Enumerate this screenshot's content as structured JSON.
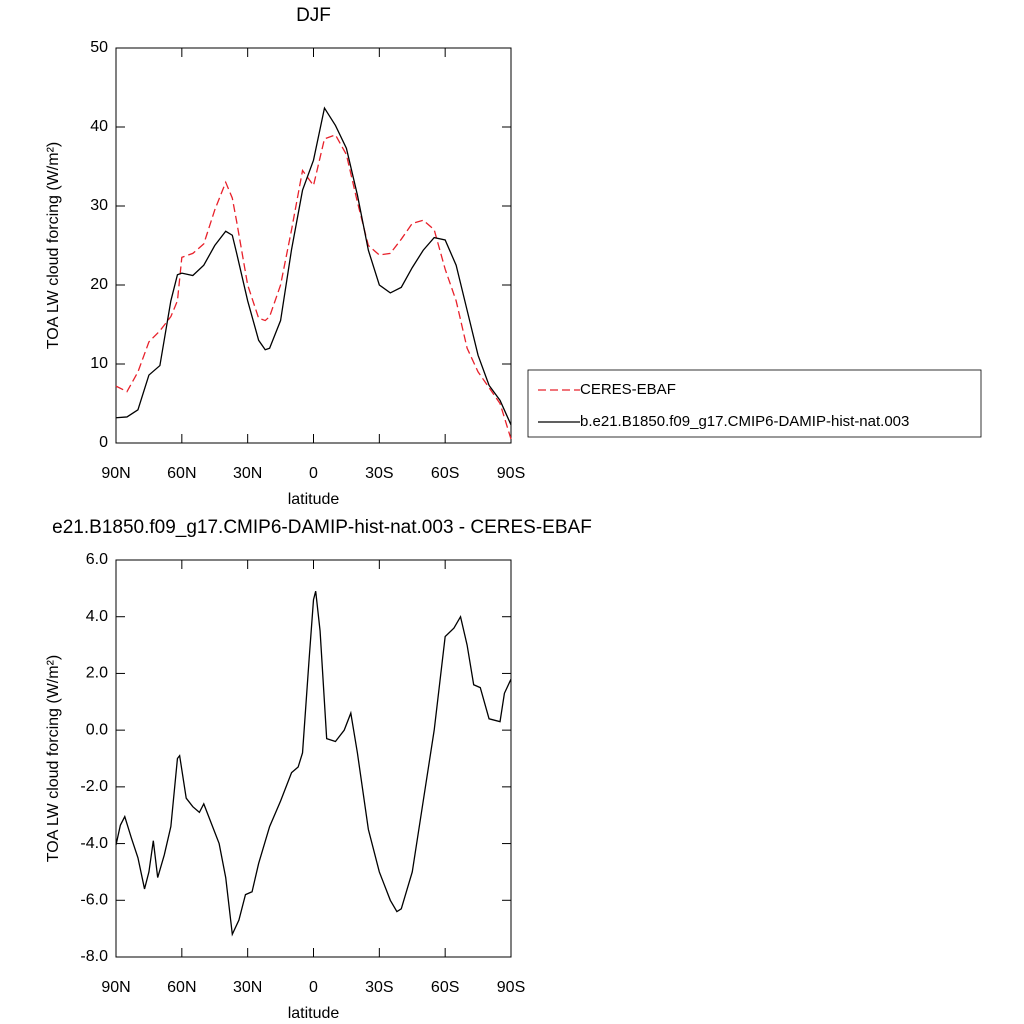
{
  "chart_data": [
    {
      "type": "line",
      "title": "DJF",
      "xlabel": "latitude",
      "ylabel": "TOA LW cloud forcing (W/m²)",
      "x": [
        90,
        85,
        80,
        75,
        70,
        65,
        62,
        60,
        55,
        50,
        45,
        40,
        37,
        35,
        30,
        25,
        22,
        20,
        15,
        10,
        5,
        0,
        -5,
        -10,
        -15,
        -20,
        -25,
        -30,
        -35,
        -40,
        -45,
        -50,
        -55,
        -60,
        -65,
        -70,
        -75,
        -80,
        -85,
        -90
      ],
      "series": [
        {
          "name": "CERES-EBAF",
          "color": "#e8212b",
          "linestyle": "dashed",
          "values": [
            7.2,
            6.5,
            9,
            12.8,
            14.2,
            16,
            18,
            23.5,
            24,
            25.2,
            29.5,
            33,
            31,
            28,
            20,
            15.8,
            15.5,
            16,
            20,
            27,
            34.5,
            32.6,
            38.5,
            39,
            36.5,
            30.5,
            25,
            23.8,
            24,
            25.8,
            27.8,
            28.2,
            27,
            22,
            18,
            12,
            9,
            7,
            5,
            0.5
          ]
        },
        {
          "name": "b.e21.B1850.f09_g17.CMIP6-DAMIP-hist-nat.003",
          "color": "#000000",
          "linestyle": "solid",
          "values": [
            3.2,
            3.3,
            4.2,
            8.6,
            9.8,
            18,
            21.3,
            21.5,
            21.2,
            22.5,
            25,
            26.8,
            26.3,
            24,
            18,
            13,
            11.8,
            12,
            15.5,
            24.5,
            32,
            35.8,
            42.4,
            40.2,
            37.3,
            31.4,
            24.4,
            20,
            19,
            19.7,
            22.2,
            24.4,
            26,
            25.7,
            22.5,
            16.8,
            11.1,
            7.3,
            5.4,
            2.3
          ]
        }
      ],
      "xlim": [
        90,
        -90
      ],
      "xticks": [
        {
          "value": 90,
          "label": "90N"
        },
        {
          "value": 60,
          "label": "60N"
        },
        {
          "value": 30,
          "label": "30N"
        },
        {
          "value": 0,
          "label": "0"
        },
        {
          "value": -30,
          "label": "30S"
        },
        {
          "value": -60,
          "label": "60S"
        },
        {
          "value": -90,
          "label": "90S"
        }
      ],
      "ylim": [
        0,
        50
      ],
      "yticks": [
        0,
        10,
        20,
        30,
        40,
        50
      ],
      "legend": "outside-right"
    },
    {
      "type": "line",
      "title": "e21.B1850.f09_g17.CMIP6-DAMIP-hist-nat.003 - CERES-EBAF",
      "xlabel": "latitude",
      "ylabel": "TOA LW cloud forcing (W/m²)",
      "x": [
        90,
        88,
        86,
        83,
        80,
        77,
        75,
        73,
        71,
        68,
        65,
        62,
        61,
        58,
        55,
        52,
        50,
        47,
        43,
        40,
        37,
        34,
        31,
        28,
        25,
        20,
        15,
        10,
        7,
        5,
        2,
        0,
        -1,
        -3,
        -6,
        -10,
        -14,
        -17,
        -20,
        -25,
        -30,
        -35,
        -38,
        -40,
        -45,
        -50,
        -55,
        -60,
        -64,
        -67,
        -70,
        -73,
        -76,
        -80,
        -85,
        -87,
        -90
      ],
      "series": [
        {
          "color": "#000000",
          "linestyle": "solid",
          "values": [
            -4.05,
            -3.35,
            -3.05,
            -3.8,
            -4.5,
            -5.6,
            -5,
            -3.9,
            -5.2,
            -4.4,
            -3.4,
            -1,
            -0.9,
            -2.4,
            -2.7,
            -2.9,
            -2.6,
            -3.2,
            -4,
            -5.2,
            -7.2,
            -6.7,
            -5.8,
            -5.7,
            -4.7,
            -3.4,
            -2.5,
            -1.5,
            -1.3,
            -0.8,
            2.5,
            4.6,
            4.9,
            3.5,
            -0.3,
            -0.4,
            0,
            0.6,
            -0.8,
            -3.5,
            -5,
            -6,
            -6.4,
            -6.3,
            -5,
            -2.5,
            0,
            3.3,
            3.6,
            4,
            3,
            1.6,
            1.5,
            0.4,
            0.3,
            1.3,
            1.8
          ]
        }
      ],
      "xlim": [
        90,
        -90
      ],
      "xticks": [
        {
          "value": 90,
          "label": "90N"
        },
        {
          "value": 60,
          "label": "60N"
        },
        {
          "value": 30,
          "label": "30N"
        },
        {
          "value": 0,
          "label": "0"
        },
        {
          "value": -30,
          "label": "30S"
        },
        {
          "value": -60,
          "label": "60S"
        },
        {
          "value": -90,
          "label": "90S"
        }
      ],
      "ylim": [
        -8,
        6
      ],
      "yticks": [
        {
          "value": -8,
          "label": "-8.0"
        },
        {
          "value": -6,
          "label": "-6.0"
        },
        {
          "value": -4,
          "label": "-4.0"
        },
        {
          "value": -2,
          "label": "-2.0"
        },
        {
          "value": 0,
          "label": "0.0"
        },
        {
          "value": 2,
          "label": "2.0"
        },
        {
          "value": 4,
          "label": "4.0"
        },
        {
          "value": 6,
          "label": "6.0"
        }
      ]
    }
  ]
}
